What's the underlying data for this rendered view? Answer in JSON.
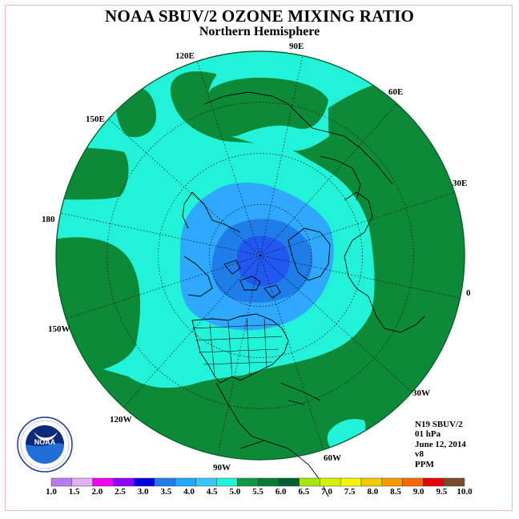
{
  "title": "NOAA SBUV/2 OZONE MIXING RATIO",
  "subtitle": "Northern Hemisphere",
  "longitude_labels": {
    "lon_90e": "90E",
    "lon_60e": "60E",
    "lon_30e": "30E",
    "lon_0": "0",
    "lon_30w": "30W",
    "lon_60w": "60W",
    "lon_90w": "90W",
    "lon_120w": "120W",
    "lon_150w": "150W",
    "lon_180": "180",
    "lon_150e": "150E",
    "lon_120e": "120E"
  },
  "info": {
    "instrument": "N19 SBUV/2",
    "level": "01 hPa",
    "date": "June 12, 2014",
    "version": "v8",
    "units": "PPM"
  },
  "logo": {
    "text": "NOAA",
    "ring_text": "NATIONAL OCEANIC AND ATMOSPHERIC ADMINISTRATION · U.S. DEPARTMENT OF COMMERCE"
  },
  "colorbar": {
    "labels": [
      "1.0",
      "1.5",
      "2.0",
      "2.5",
      "3.0",
      "3.5",
      "4.0",
      "4.5",
      "5.0",
      "5.5",
      "6.0",
      "6.5",
      "7.0",
      "7.5",
      "8.0",
      "8.5",
      "9.0",
      "9.5",
      "10.0"
    ],
    "colors": [
      "#b87cf0",
      "#dfb0f2",
      "#ef00ef",
      "#9000ff",
      "#0000e0",
      "#1f7dea",
      "#1fa8ff",
      "#37c7ff",
      "#20f5dc",
      "#149846",
      "#067c38",
      "#006030",
      "#a6e60a",
      "#d9f000",
      "#f5f500",
      "#f5c800",
      "#f59a00",
      "#f56a00",
      "#e60000",
      "#7a4a2c"
    ]
  },
  "map_colors": {
    "outer_green": "#0c8a38",
    "turquoise": "#22f2d8",
    "light_blue": "#2fa8ff",
    "mid_blue": "#1f7dea",
    "dark_blue": "#2058f0"
  }
}
